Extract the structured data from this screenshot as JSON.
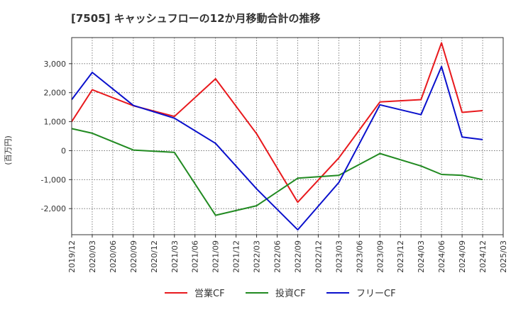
{
  "chart_data": {
    "type": "line",
    "title": "[7505]  キャッシュフローの12か月移動合計の推移",
    "ylabel": "(百万円)",
    "xlabel": "",
    "ylim": [
      -2900,
      3900
    ],
    "yticks": [
      3000,
      2000,
      1000,
      0,
      -1000,
      -2000
    ],
    "ytick_labels": [
      "3,000",
      "2,000",
      "1,000",
      "0",
      "-1,000",
      "-2,000"
    ],
    "categories": [
      "2019/12",
      "2020/03",
      "2020/06",
      "2020/09",
      "2020/12",
      "2021/03",
      "2021/06",
      "2021/09",
      "2021/12",
      "2022/03",
      "2022/06",
      "2022/09",
      "2022/12",
      "2023/03",
      "2023/06",
      "2023/09",
      "2023/12",
      "2024/03",
      "2024/06",
      "2024/09",
      "2024/12",
      "2025/03"
    ],
    "grid": true,
    "legend_position": "bottom-center",
    "series": [
      {
        "name": "営業CF",
        "color": "#e8191d",
        "values": [
          1000,
          2100,
          null,
          1550,
          null,
          1180,
          null,
          2480,
          null,
          580,
          null,
          -1780,
          null,
          -250,
          null,
          1680,
          null,
          1760,
          3720,
          1320,
          1380,
          null
        ]
      },
      {
        "name": "投資CF",
        "color": "#218a21",
        "values": [
          760,
          600,
          null,
          20,
          null,
          -60,
          null,
          -2230,
          null,
          -1900,
          null,
          -950,
          null,
          -850,
          null,
          -100,
          null,
          -530,
          -820,
          -850,
          -1000,
          null
        ]
      },
      {
        "name": "フリーCF",
        "color": "#0a10cc",
        "values": [
          1760,
          2700,
          null,
          1560,
          null,
          1120,
          null,
          250,
          null,
          -1320,
          null,
          -2730,
          null,
          -1100,
          null,
          1580,
          null,
          1240,
          2900,
          470,
          380,
          null
        ]
      }
    ]
  }
}
